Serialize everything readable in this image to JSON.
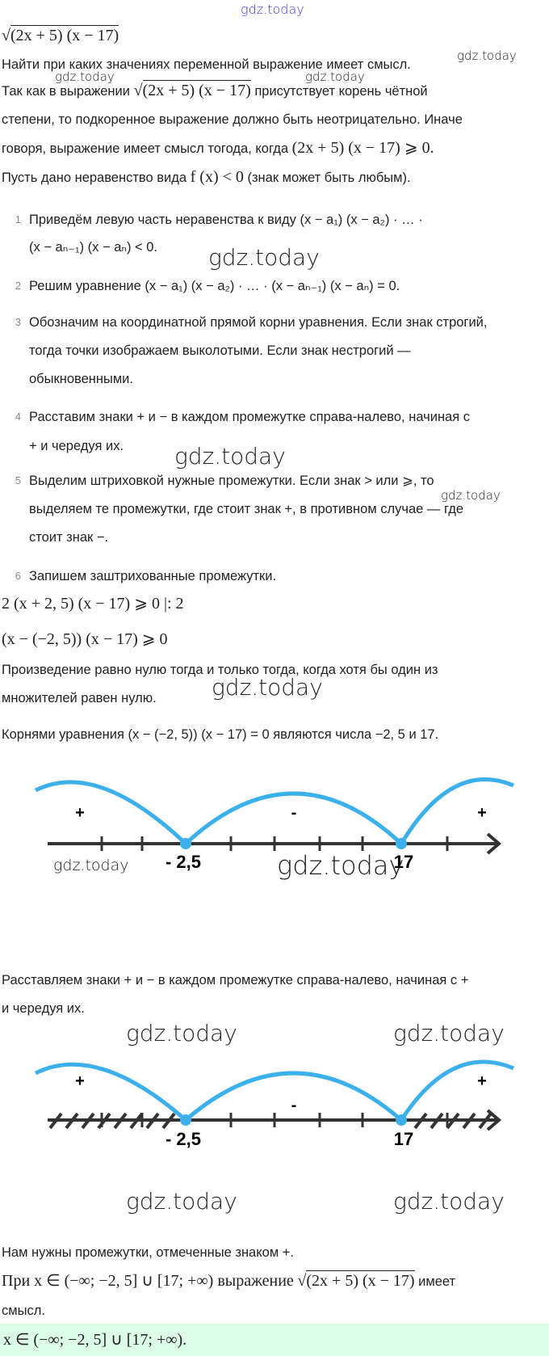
{
  "watermark": "gdz.today",
  "task": {
    "radicand": "(2x + 5) (x − 17)"
  },
  "intro": {
    "line1": "Найти при каких значениях переменной выражение имеет смысл.",
    "line2_a": "Так как в выражении",
    "line2_b": "присутствует корень чётной",
    "line3": "степени, то подкоренное выражение должно быть неотрицательно. Иначе",
    "line4_a": "говоря, выражение имеет смысл тогода, когда",
    "line4_m": "(2x + 5) (x − 17) ⩾ 0.",
    "line5_a": "Пусть дано неравенство вида",
    "line5_m": "f (x) < 0",
    "line5_b": "(знак может быть любым)."
  },
  "steps": [
    {
      "n": "1",
      "lines": [
        "Приведём левую часть неравенства к виду (x − a₁) (x − a₂) · … ·",
        "(x − aₙ₋₁) (x − aₙ) < 0."
      ]
    },
    {
      "n": "2",
      "lines": [
        "Решим уравнение (x − a₁) (x − a₂) · … · (x − aₙ₋₁) (x − aₙ) = 0."
      ]
    },
    {
      "n": "3",
      "lines": [
        "Обозначим на координатной прямой корни уравнения. Если знак строгий,",
        "тогда точки изображаем выколотыми. Если знак нестрогий —",
        "обыкновенными."
      ]
    },
    {
      "n": "4",
      "lines": [
        "Расставим знаки + и − в каждом промежутке справа-налево, начиная с",
        "+ и чередуя их."
      ]
    },
    {
      "n": "5",
      "lines": [
        "Выделим штриховкой нужные промежутки. Если знак > или ⩾, то",
        "выделяем те промежутки, где стоит знак +, в противном случае — где",
        "стоит знак −."
      ]
    },
    {
      "n": "6",
      "lines": [
        "Запишем заштрихованные промежутки."
      ]
    }
  ],
  "solution": {
    "eq1": "2 (x + 2, 5) (x − 17) ⩾ 0  |: 2",
    "eq2": "(x − (−2, 5)) (x − 17) ⩾ 0",
    "text1": "Произведение равно нулю тогда и только тогда, когда хотя бы один из",
    "text2": "множителей равен нулю.",
    "roots": "Корнями уравнения (x − (−2, 5)) (x − 17) = 0 являются числа −2, 5 и 17.",
    "signs1": "Расставляем знаки + и − в каждом промежутке справа-налево, начиная с +",
    "signs2": "и чередуя их.",
    "need": "Нам нужны промежутки, отмеченные знаком +.",
    "concl_a": "При x ∈ (−∞;  −2, 5] ∪ [17;  +∞) выражение",
    "concl_b": "имеет",
    "concl_c": "смысл.",
    "answer": "x ∈ (−∞;  −2, 5] ∪ [17;  +∞)."
  },
  "number_line": {
    "roots": [
      "- 2,5",
      "17"
    ],
    "signs": [
      "+",
      "-",
      "+"
    ],
    "arc_color": "#3bb0ea",
    "axis_color": "#333333",
    "shaded_intervals": [
      "(−∞; −2,5]",
      "[17; +∞)"
    ]
  },
  "colors": {
    "answer_bg": "#dcfce7",
    "watermark_top": "#3b3bdc"
  }
}
